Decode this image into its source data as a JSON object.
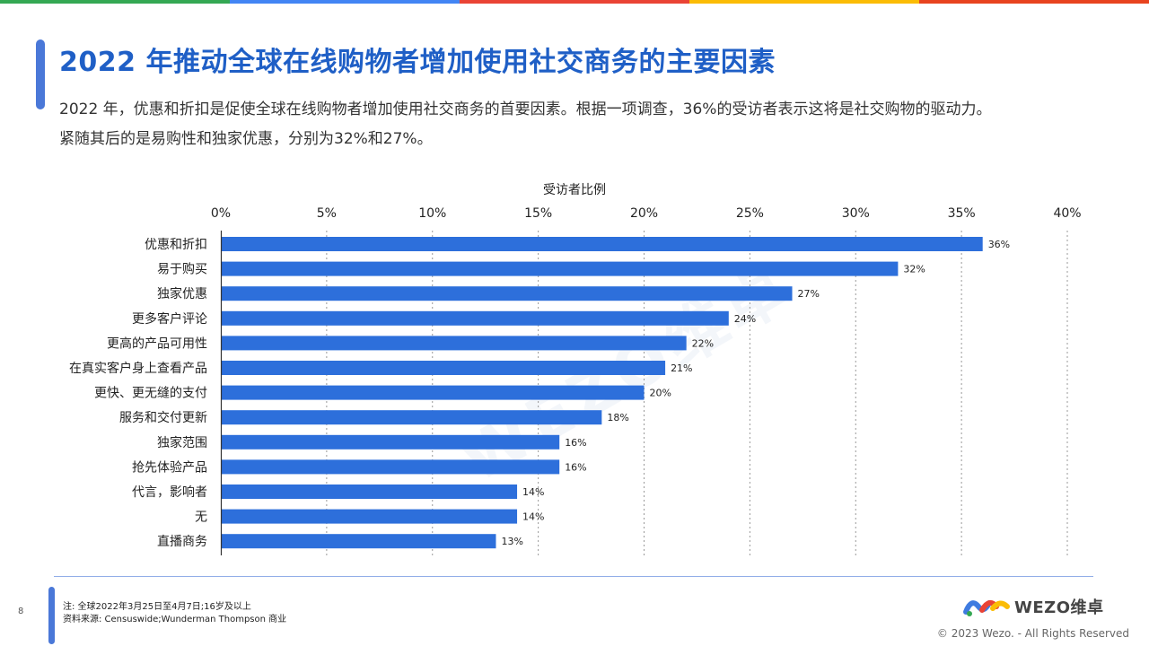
{
  "colors": {
    "top_bar": [
      "#34a853",
      "#4285f4",
      "#ea4335",
      "#fbbc05",
      "#e8431f"
    ],
    "title": "#1f5fc6",
    "bar": "#2d6fdb",
    "accent": "#4a78d8"
  },
  "header": {
    "title": "2022 年推动全球在线购物者增加使用社交商务的主要因素",
    "subtitle": "2022 年，优惠和折扣是促使全球在线购物者增加使用社交商务的首要因素。根据一项调查，36%的受访者表示这将是社交购物的驱动力。紧随其后的是易购性和独家优惠，分别为32%和27%。"
  },
  "chart_data": {
    "type": "bar",
    "orientation": "horizontal",
    "xlabel": "受访者比例",
    "xlim": [
      0,
      40
    ],
    "xticks": [
      "0%",
      "5%",
      "10%",
      "15%",
      "20%",
      "25%",
      "30%",
      "35%",
      "40%"
    ],
    "grid": true,
    "categories": [
      "优惠和折扣",
      "易于购买",
      "独家优惠",
      "更多客户评论",
      "更高的产品可用性",
      "在真实客户身上查看产品",
      "更快、更无缝的支付",
      "服务和交付更新",
      "独家范围",
      "抢先体验产品",
      "代言，影响者",
      "无",
      "直播商务"
    ],
    "values": [
      36,
      32,
      27,
      24,
      22,
      21,
      20,
      18,
      16,
      16,
      14,
      14,
      13
    ],
    "value_labels": [
      "36%",
      "32%",
      "27%",
      "24%",
      "22%",
      "21%",
      "20%",
      "18%",
      "16%",
      "16%",
      "14%",
      "14%",
      "13%"
    ]
  },
  "footer": {
    "page_number": "8",
    "note": "注:  全球2022年3月25日至4月7日;16岁及以上",
    "source": "资料来源:  Censuswide;Wunderman Thompson 商业",
    "logo_text": "WEZO维卓",
    "copyright": "© 2023 Wezo. - All Rights Reserved",
    "watermark": "WEZO维卓"
  }
}
